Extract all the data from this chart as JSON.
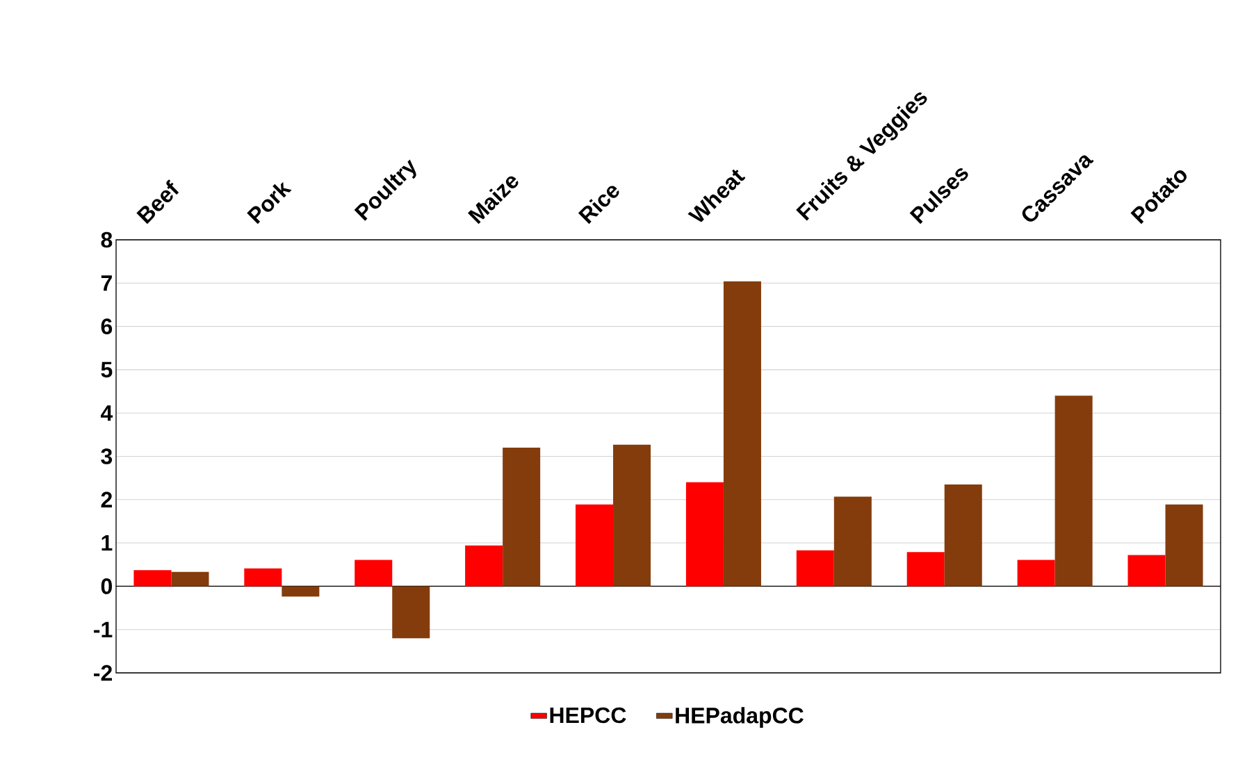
{
  "chart_data": {
    "type": "bar",
    "categories": [
      "Beef",
      "Pork",
      "Poultry",
      "Maize",
      "Rice",
      "Wheat",
      "Fruits & Veggies",
      "Pulses",
      "Cassava",
      "Potato"
    ],
    "series": [
      {
        "name": "HEPCC",
        "color": "#ff0000",
        "values": [
          0.37,
          0.41,
          0.61,
          0.94,
          1.89,
          2.4,
          0.83,
          0.79,
          0.61,
          0.72
        ]
      },
      {
        "name": "HEPadapCC",
        "color": "#843c0c",
        "values": [
          0.33,
          -0.24,
          -1.2,
          3.2,
          3.27,
          7.04,
          2.07,
          2.35,
          4.4,
          1.89
        ]
      }
    ],
    "ylim": [
      -2,
      8
    ],
    "yticks": [
      -2,
      -1,
      0,
      1,
      2,
      3,
      4,
      5,
      6,
      7,
      8
    ],
    "grid": "y",
    "legend": "bottom"
  }
}
